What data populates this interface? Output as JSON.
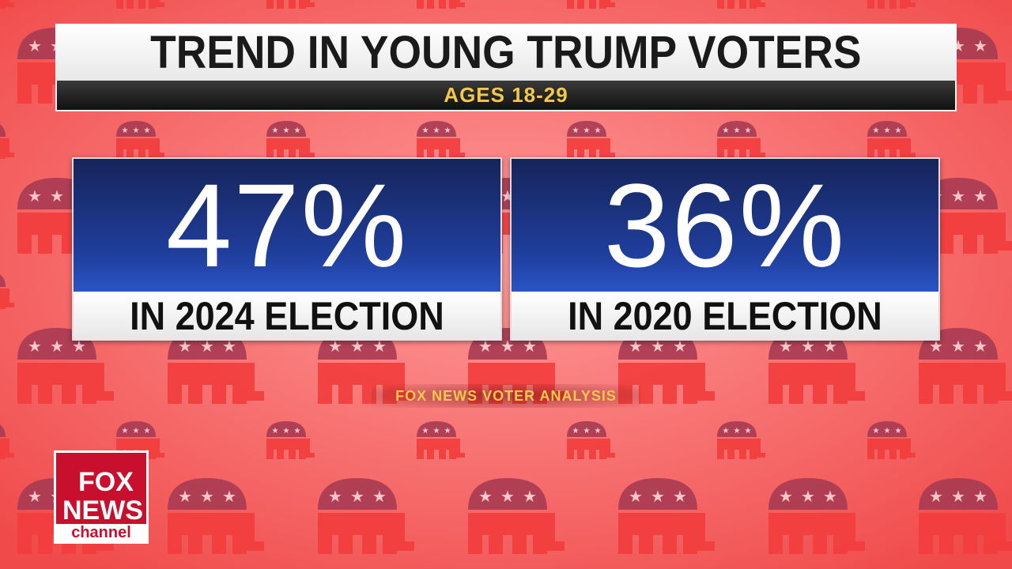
{
  "header": {
    "title": "TREND IN YOUNG TRUMP VOTERS",
    "subtitle": "AGES 18-29"
  },
  "cards": [
    {
      "value": "47%",
      "label": "IN 2024 ELECTION"
    },
    {
      "value": "36%",
      "label": "IN 2020 ELECTION"
    }
  ],
  "source": "FOX NEWS VOTER ANALYSIS",
  "logo": {
    "line1": "FOX",
    "line2": "NEWS",
    "line3": "channel"
  }
}
